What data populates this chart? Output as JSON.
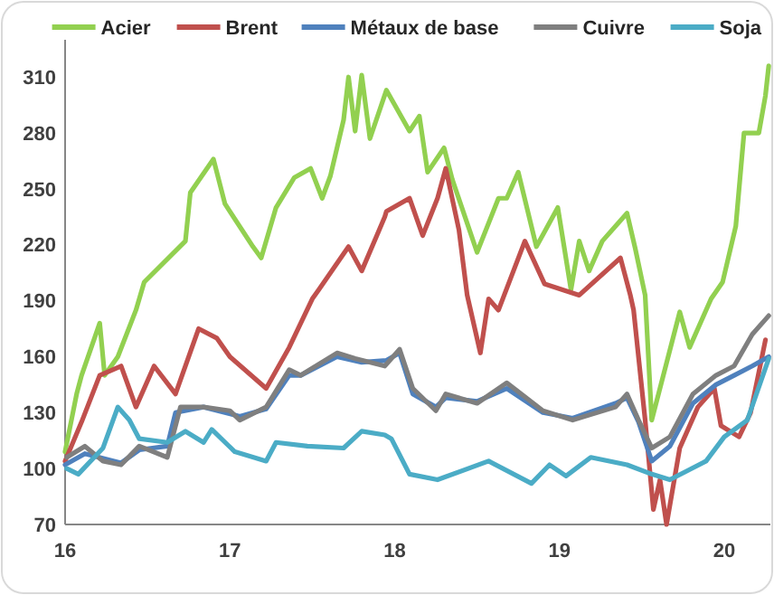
{
  "chart_data": {
    "type": "line",
    "legend": "top",
    "grid": false,
    "marker": "none",
    "line_style": "solid",
    "xlim": [
      16,
      20.28
    ],
    "xticks": [
      16,
      17,
      18,
      19,
      20
    ],
    "ylim": [
      70,
      330
    ],
    "yticks": [
      70,
      100,
      130,
      160,
      190,
      220,
      250,
      280,
      310
    ],
    "series": [
      {
        "name": "Acier",
        "color": "#92d050",
        "x": [
          16,
          16.07,
          16.1,
          16.21,
          16.24,
          16.32,
          16.43,
          16.48,
          16.73,
          16.76,
          16.9,
          16.97,
          17.14,
          17.19,
          17.28,
          17.39,
          17.49,
          17.56,
          17.61,
          17.69,
          17.72,
          17.76,
          17.8,
          17.85,
          17.95,
          18.09,
          18.15,
          18.2,
          18.3,
          18.35,
          18.5,
          18.63,
          18.68,
          18.75,
          18.86,
          18.99,
          19.07,
          19.12,
          19.18,
          19.26,
          19.41,
          19.46,
          19.52,
          19.56,
          19.73,
          19.79,
          19.92,
          19.99,
          20.07,
          20.12,
          20.21,
          20.25,
          20.27
        ],
        "values": [
          109,
          140,
          150,
          178,
          150,
          160,
          185,
          200,
          222,
          248,
          266,
          242,
          219,
          213,
          240,
          256,
          261,
          245,
          257,
          287,
          310,
          281,
          311,
          277,
          303,
          281,
          289,
          259,
          272,
          255,
          216,
          245,
          245,
          259,
          219,
          240,
          196,
          222,
          206,
          222,
          237,
          218,
          193,
          126,
          184,
          165,
          191,
          200,
          230,
          280,
          280,
          300,
          316
        ]
      },
      {
        "name": "Brent",
        "color": "#c0504d",
        "x": [
          16,
          16.1,
          16.21,
          16.34,
          16.43,
          16.54,
          16.67,
          16.81,
          16.92,
          17,
          17.22,
          17.36,
          17.5,
          17.54,
          17.72,
          17.8,
          17.94,
          17.95,
          18.09,
          18.17,
          18.26,
          18.31,
          18.39,
          18.44,
          18.52,
          18.57,
          18.63,
          18.79,
          18.91,
          19.12,
          19.37,
          19.43,
          19.45,
          19.52,
          19.57,
          19.61,
          19.65,
          19.73,
          19.84,
          19.94,
          19.98,
          20.09,
          20.16,
          20.25
        ],
        "values": [
          104,
          125,
          150,
          155,
          133,
          155,
          140,
          175,
          170,
          160,
          143,
          165,
          191,
          196,
          219,
          206,
          235,
          238,
          245,
          225,
          245,
          261,
          228,
          193,
          162,
          191,
          185,
          222,
          199,
          193,
          213,
          193,
          185,
          126,
          78,
          94,
          70,
          111,
          133,
          143,
          123,
          117,
          130,
          169
        ]
      },
      {
        "name": "Métaux de base",
        "color": "#4f81bd",
        "x": [
          16,
          16.12,
          16.34,
          16.45,
          16.62,
          16.67,
          16.84,
          17.06,
          17.22,
          17.36,
          17.43,
          17.65,
          17.8,
          17.95,
          18.03,
          18.11,
          18.25,
          18.31,
          18.5,
          18.68,
          18.9,
          19.08,
          19.34,
          19.41,
          19.48,
          19.56,
          19.67,
          19.81,
          19.95,
          20.06,
          20.17,
          20.27
        ],
        "values": [
          102,
          108,
          103,
          110,
          112,
          130,
          133,
          128,
          132,
          150,
          150,
          160,
          157,
          158,
          162,
          140,
          133,
          138,
          136,
          143,
          130,
          127,
          135,
          138,
          125,
          104,
          112,
          135,
          145,
          150,
          155,
          160
        ]
      },
      {
        "name": "Cuivre",
        "color": "#7f7f7f",
        "x": [
          16.01,
          16.12,
          16.23,
          16.34,
          16.45,
          16.62,
          16.7,
          16.84,
          17,
          17.06,
          17.22,
          17.36,
          17.43,
          17.65,
          17.76,
          17.94,
          18.03,
          18.11,
          18.25,
          18.31,
          18.5,
          18.68,
          18.9,
          19.08,
          19.34,
          19.41,
          19.48,
          19.56,
          19.67,
          19.81,
          19.95,
          20.06,
          20.17,
          20.27
        ],
        "values": [
          106,
          112,
          104,
          102,
          112,
          106,
          133,
          133,
          131,
          126,
          133,
          153,
          150,
          162,
          159,
          155,
          164,
          143,
          131,
          140,
          135,
          146,
          131,
          126,
          133,
          140,
          126,
          111,
          117,
          140,
          150,
          155,
          172,
          182
        ]
      },
      {
        "name": "Soja",
        "color": "#4bacc6",
        "x": [
          16.01,
          16.08,
          16.23,
          16.32,
          16.39,
          16.45,
          16.62,
          16.73,
          16.84,
          16.89,
          17.03,
          17.22,
          17.28,
          17.47,
          17.69,
          17.8,
          17.94,
          17.98,
          18.09,
          18.26,
          18.57,
          18.83,
          18.94,
          19.04,
          19.19,
          19.41,
          19.56,
          19.67,
          19.89,
          20,
          20.14,
          20.27
        ],
        "values": [
          100,
          97,
          111,
          133,
          126,
          116,
          114,
          120,
          114,
          121,
          109,
          104,
          114,
          112,
          111,
          120,
          118,
          116,
          97,
          94,
          104,
          92,
          102,
          96,
          106,
          102,
          97,
          94,
          104,
          117,
          126,
          159
        ]
      }
    ]
  }
}
